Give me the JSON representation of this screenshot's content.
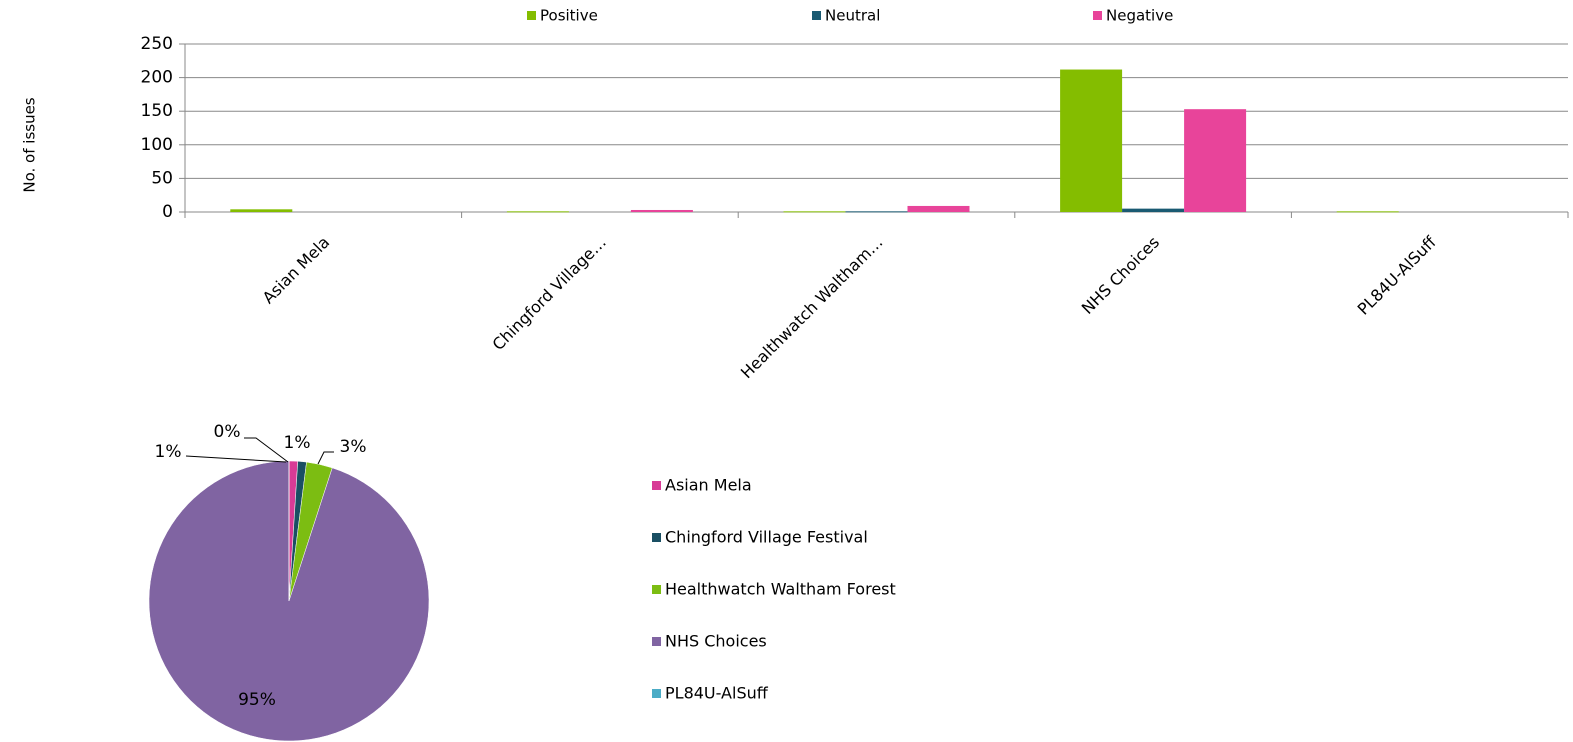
{
  "chart_data": [
    {
      "type": "bar",
      "y_label": "No. of issues",
      "categories": [
        "Asian Mela",
        "Chingford Village…",
        "Healthwatch Waltham…",
        "NHS Choices",
        "PL84U-AlSuff"
      ],
      "series": [
        {
          "name": "Positive",
          "color": "#84bd00",
          "values": [
            4,
            1,
            1,
            212,
            1
          ]
        },
        {
          "name": "Neutral",
          "color": "#1a5a72",
          "values": [
            0,
            0,
            1,
            5,
            0
          ]
        },
        {
          "name": "Negative",
          "color": "#e8449a",
          "values": [
            0,
            3,
            9,
            153,
            0
          ]
        }
      ],
      "ylim": [
        0,
        250
      ],
      "yticks": [
        0,
        50,
        100,
        150,
        200,
        250
      ],
      "grid": true,
      "legend": "top"
    },
    {
      "type": "pie",
      "categories": [
        "Asian Mela",
        "Chingford Village Festival",
        "Healthwatch Waltham Forest",
        "NHS Choices",
        "PL84U-AlSuff"
      ],
      "values": [
        1,
        1,
        3,
        95,
        0
      ],
      "value_labels": [
        "1%",
        "1%",
        "3%",
        "95%",
        "0%"
      ],
      "colors": [
        "#d83b96",
        "#1a4f63",
        "#7cbd12",
        "#8064a2",
        "#4bacc6"
      ],
      "legend": "right"
    }
  ]
}
